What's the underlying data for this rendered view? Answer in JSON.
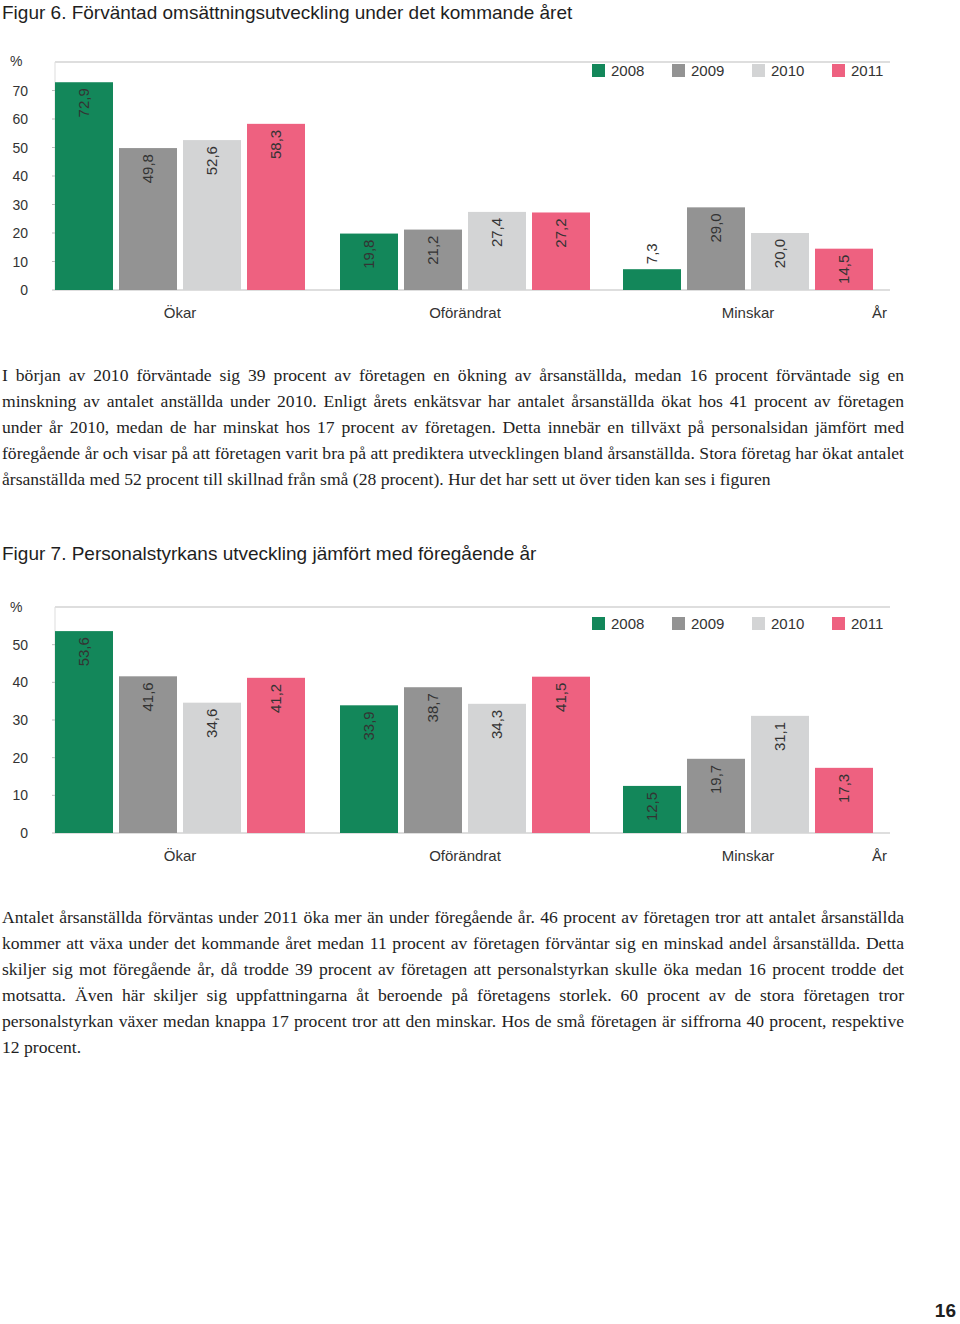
{
  "chart_data": [
    {
      "type": "bar",
      "title": "Figur 6. Förväntad omsättningsutveckling under det kommande året",
      "y_label": "%",
      "x_label": "År",
      "categories": [
        "Ökar",
        "Oförändrat",
        "Minskar"
      ],
      "series": [
        {
          "name": "2008",
          "color": "#13875a",
          "values": [
            72.9,
            19.8,
            7.3
          ],
          "value_labels": [
            "72,9",
            "19,8",
            "7,3"
          ]
        },
        {
          "name": "2009",
          "color": "#939393",
          "values": [
            49.8,
            21.2,
            29.0
          ],
          "value_labels": [
            "49,8",
            "21,2",
            "29,0"
          ]
        },
        {
          "name": "2010",
          "color": "#d3d4d5",
          "values": [
            52.6,
            27.4,
            20.0
          ],
          "value_labels": [
            "52,6",
            "27,4",
            "20,0"
          ]
        },
        {
          "name": "2011",
          "color": "#ee6180",
          "values": [
            58.3,
            27.2,
            14.5
          ],
          "value_labels": [
            "58,3",
            "27,2",
            "14,5"
          ]
        }
      ],
      "ylim": [
        0,
        80
      ],
      "yticks": [
        0,
        10,
        20,
        30,
        40,
        50,
        60,
        70
      ],
      "grid": false,
      "legend": "upper right",
      "data_labels": true
    },
    {
      "type": "bar",
      "title": "Figur 7. Personalstyrkans utveckling jämfört med föregående år",
      "y_label": "%",
      "x_label": "År",
      "categories": [
        "Ökar",
        "Oförändrat",
        "Minskar"
      ],
      "series": [
        {
          "name": "2008",
          "color": "#13875a",
          "values": [
            53.6,
            33.9,
            12.5
          ],
          "value_labels": [
            "53,6",
            "33,9",
            "12,5"
          ]
        },
        {
          "name": "2009",
          "color": "#939393",
          "values": [
            41.6,
            38.7,
            19.7
          ],
          "value_labels": [
            "41,6",
            "38,7",
            "19,7"
          ]
        },
        {
          "name": "2010",
          "color": "#d3d4d5",
          "values": [
            34.6,
            34.3,
            31.1
          ],
          "value_labels": [
            "34,6",
            "34,3",
            "31,1"
          ]
        },
        {
          "name": "2011",
          "color": "#ee6180",
          "values": [
            41.2,
            41.5,
            17.3
          ],
          "value_labels": [
            "41,2",
            "41,5",
            "17,3"
          ]
        }
      ],
      "ylim": [
        0,
        60
      ],
      "yticks": [
        0,
        10,
        20,
        30,
        40,
        50
      ],
      "grid": false,
      "legend": "upper right",
      "data_labels": true
    }
  ],
  "paragraphs": [
    "I början av 2010 förväntade sig 39 procent av företagen en ökning av årsanställda, medan 16 procent förväntade sig en minskning av antalet anställda under 2010. Enligt årets enkätsvar har antalet årsanställda ökat hos 41 procent av företagen under år 2010, medan de har minskat hos 17 procent av företagen. Detta innebär en tillväxt på personalsidan jämfört med föregående år och visar på att företagen varit bra på att prediktera utvecklingen bland årsanställda. Stora företag har ökat antalet årsanställda med 52 procent till skillnad från små (28 procent). Hur det har sett ut över tiden kan ses i figuren",
    "Antalet årsanställda förväntas under 2011 öka mer än under föregående år. 46 procent av företagen tror att antalet årsanställda kommer att växa under det kommande året medan 11 procent av företagen förväntar sig en minskad andel årsanställda. Detta skiljer sig mot föregående år, då trodde 39 procent av företagen att personalstyrkan skulle öka medan 16 procent trodde det motsatta. Även här skiljer sig uppfattningarna åt beroende på företagens storlek. 60 procent av de stora företagen tror personalstyrkan växer medan knappa 17 procent tror att den minskar. Hos de små företagen är siffrorna 40 procent, respektive 12 procent."
  ],
  "page_number": 16
}
